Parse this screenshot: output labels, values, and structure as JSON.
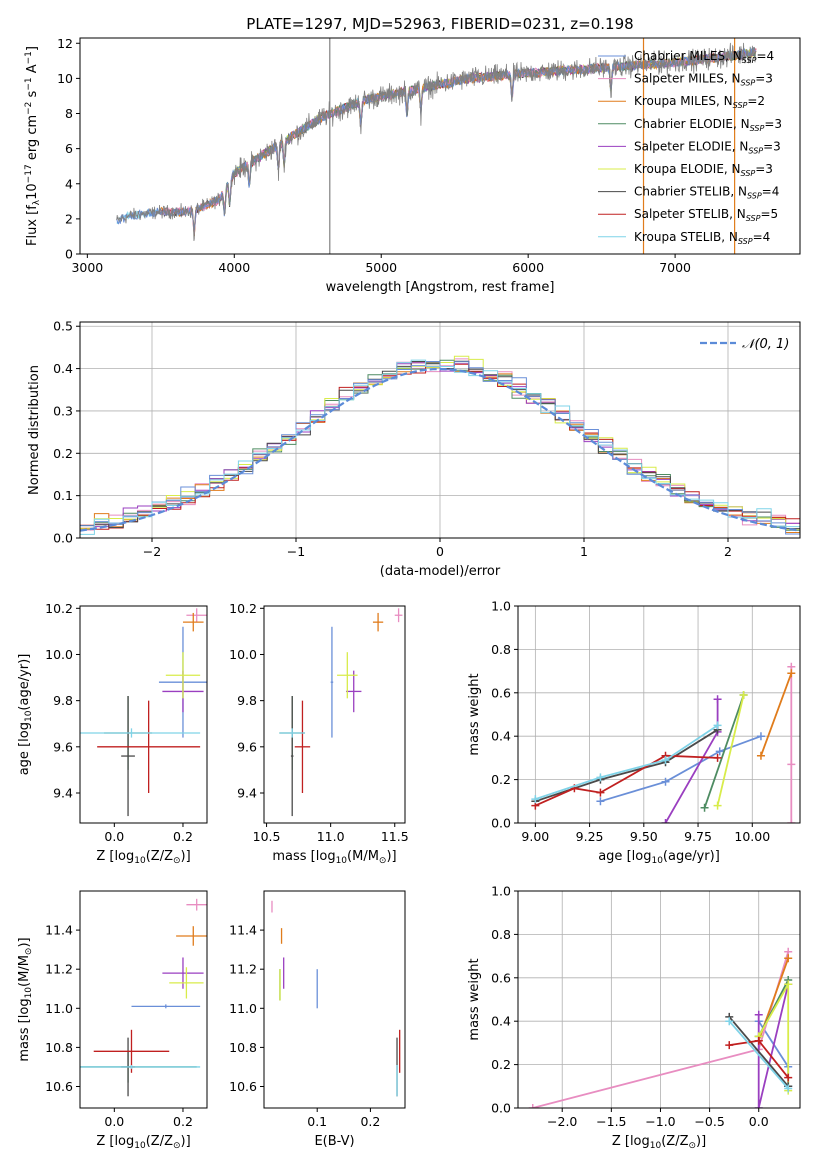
{
  "figure_title": "PLATE=1297, MJD=52963, FIBERID=0231, z=0.198",
  "colors": {
    "Chabrier MILES": "#6a8fd8",
    "Salpeter MILES": "#e88dc1",
    "Kroupa MILES": "#e07c1c",
    "Chabrier ELODIE": "#4e8c62",
    "Salpeter ELODIE": "#9a3fc0",
    "Kroupa ELODIE": "#d8ec4a",
    "Chabrier STELIB": "#4a4a4a",
    "Salpeter STELIB": "#c02020",
    "Kroupa STELIB": "#7fd3e8",
    "data": "#808080"
  },
  "chart_data": [
    {
      "id": "spectrum",
      "type": "line",
      "xlabel": "wavelength [Angstrom, rest frame]",
      "ylabel": "Flux [f_λ10^-17 erg cm^-2 s^-1 A^-1]",
      "xlim": [
        2950,
        7850
      ],
      "ylim": [
        0,
        12.3
      ],
      "xticks": [
        3000,
        4000,
        5000,
        6000,
        7000
      ],
      "yticks": [
        0,
        2,
        4,
        6,
        8,
        10,
        12
      ],
      "legend_position": "upper right",
      "legend": [
        {
          "name": "Chabrier MILES",
          "nssp": "4"
        },
        {
          "name": "Salpeter MILES",
          "nssp": "3"
        },
        {
          "name": "Kroupa MILES",
          "nssp": "2"
        },
        {
          "name": "Chabrier ELODIE",
          "nssp": "3"
        },
        {
          "name": "Salpeter ELODIE",
          "nssp": "3"
        },
        {
          "name": "Kroupa ELODIE",
          "nssp": "3"
        },
        {
          "name": "Chabrier STELIB",
          "nssp": "4"
        },
        {
          "name": "Salpeter STELIB",
          "nssp": "5"
        },
        {
          "name": "Kroupa STELIB",
          "nssp": "4"
        }
      ],
      "continuum": {
        "x": [
          3200,
          3300,
          3500,
          3700,
          3900,
          4000,
          4300,
          4600,
          4900,
          5200,
          5600,
          6000,
          6500,
          7000,
          7400,
          7600
        ],
        "y": [
          1.9,
          2.2,
          2.4,
          2.4,
          3.1,
          4.6,
          6.2,
          7.8,
          8.8,
          9.3,
          10.0,
          10.3,
          10.6,
          10.9,
          11.3,
          11.6
        ]
      }
    },
    {
      "id": "residuals",
      "type": "step",
      "xlabel": "(data-model)/error",
      "ylabel": "Normed distribution",
      "xlim": [
        -2.5,
        2.5
      ],
      "ylim": [
        0,
        0.51
      ],
      "xticks": [
        -2,
        -1,
        0,
        1,
        2
      ],
      "yticks": [
        0.0,
        0.1,
        0.2,
        0.3,
        0.4,
        0.5
      ],
      "legend_label": "N(0,1)",
      "bin_width": 0.1
    },
    {
      "id": "age_vs_Z",
      "type": "errorbar",
      "xlabel": "Z [log10(Z/Z⊙)]",
      "ylabel": "age  [log10(age/yr)]",
      "xlim": [
        -0.1,
        0.27
      ],
      "ylim": [
        9.27,
        10.21
      ],
      "xticks": [
        0.0,
        0.2
      ],
      "yticks": [
        9.4,
        9.6,
        9.8,
        10.0,
        10.2
      ],
      "points": [
        {
          "model": "Chabrier MILES",
          "x": 0.2,
          "xerr": 0.07,
          "y": 9.88,
          "yerr": 0.24
        },
        {
          "model": "Salpeter MILES",
          "x": 0.24,
          "xerr": 0.03,
          "y": 10.17,
          "yerr": 0.03
        },
        {
          "model": "Kroupa MILES",
          "x": 0.23,
          "xerr": 0.03,
          "y": 10.14,
          "yerr": 0.04
        },
        {
          "model": "Chabrier ELODIE",
          "x": 0.04,
          "xerr": 0.07,
          "y": 9.66,
          "yerr": 0.16
        },
        {
          "model": "Salpeter ELODIE",
          "x": 0.2,
          "xerr": 0.06,
          "y": 9.84,
          "yerr": 0.09
        },
        {
          "model": "Kroupa ELODIE",
          "x": 0.2,
          "xerr": 0.05,
          "y": 9.91,
          "yerr": 0.1
        },
        {
          "model": "Chabrier STELIB",
          "x": 0.04,
          "xerr": 0.02,
          "y": 9.56,
          "yerr": 0.26
        },
        {
          "model": "Salpeter STELIB",
          "x": 0.1,
          "xerr": 0.15,
          "y": 9.6,
          "yerr": 0.2
        },
        {
          "model": "Kroupa STELIB",
          "x": 0.05,
          "xerr": 0.2,
          "y": 9.66,
          "yerr": 0.02
        }
      ]
    },
    {
      "id": "age_vs_mass",
      "type": "errorbar",
      "xlabel": "mass [log10(M/M⊙)]",
      "ylabel": "",
      "xlim": [
        10.48,
        11.58
      ],
      "ylim": [
        9.27,
        10.21
      ],
      "xticks": [
        10.5,
        11.0,
        11.5
      ],
      "yticks": [
        9.4,
        9.6,
        9.8,
        10.0,
        10.2
      ],
      "points": [
        {
          "model": "Chabrier MILES",
          "x": 11.01,
          "xerr": 0.01,
          "y": 9.88,
          "yerr": 0.24
        },
        {
          "model": "Salpeter MILES",
          "x": 11.53,
          "xerr": 0.03,
          "y": 10.17,
          "yerr": 0.03
        },
        {
          "model": "Kroupa MILES",
          "x": 11.37,
          "xerr": 0.04,
          "y": 10.14,
          "yerr": 0.04
        },
        {
          "model": "Chabrier ELODIE",
          "x": 10.7,
          "xerr": 0.1,
          "y": 9.66,
          "yerr": 0.16
        },
        {
          "model": "Salpeter ELODIE",
          "x": 11.18,
          "xerr": 0.06,
          "y": 9.84,
          "yerr": 0.09
        },
        {
          "model": "Kroupa ELODIE",
          "x": 11.13,
          "xerr": 0.08,
          "y": 9.91,
          "yerr": 0.1
        },
        {
          "model": "Chabrier STELIB",
          "x": 10.7,
          "xerr": 0.01,
          "y": 9.56,
          "yerr": 0.26
        },
        {
          "model": "Salpeter STELIB",
          "x": 10.78,
          "xerr": 0.06,
          "y": 9.6,
          "yerr": 0.2
        },
        {
          "model": "Kroupa STELIB",
          "x": 10.7,
          "xerr": 0.1,
          "y": 9.66,
          "yerr": 0.02
        }
      ]
    },
    {
      "id": "weight_vs_age",
      "type": "line",
      "xlabel": "age  [log10(age/yr)]",
      "ylabel": "mass weight",
      "xlim": [
        8.92,
        10.22
      ],
      "ylim": [
        0,
        1.0
      ],
      "xticks": [
        9.0,
        9.25,
        9.5,
        9.75,
        10.0
      ],
      "yticks": [
        0.0,
        0.2,
        0.4,
        0.6,
        0.8,
        1.0
      ],
      "series": [
        {
          "model": "Chabrier MILES",
          "x": [
            9.3,
            9.6,
            9.85,
            10.04
          ],
          "y": [
            0.1,
            0.19,
            0.33,
            0.4
          ]
        },
        {
          "model": "Salpeter MILES",
          "x": [
            10.18,
            10.18,
            10.18
          ],
          "y": [
            0.0,
            0.27,
            0.72
          ]
        },
        {
          "model": "Kroupa MILES",
          "x": [
            10.04,
            10.18
          ],
          "y": [
            0.31,
            0.69
          ]
        },
        {
          "model": "Chabrier ELODIE",
          "x": [
            9.78,
            9.96
          ],
          "y": [
            0.07,
            0.59
          ]
        },
        {
          "model": "Salpeter ELODIE",
          "x": [
            9.6,
            9.84,
            9.84
          ],
          "y": [
            0.0,
            0.42,
            0.57
          ]
        },
        {
          "model": "Kroupa ELODIE",
          "x": [
            9.84,
            9.96
          ],
          "y": [
            0.08,
            0.59
          ]
        },
        {
          "model": "Chabrier STELIB",
          "x": [
            9.0,
            9.3,
            9.6,
            9.84
          ],
          "y": [
            0.1,
            0.2,
            0.28,
            0.43
          ]
        },
        {
          "model": "Salpeter STELIB",
          "x": [
            9.0,
            9.18,
            9.3,
            9.6,
            9.84
          ],
          "y": [
            0.08,
            0.16,
            0.14,
            0.31,
            0.3
          ]
        },
        {
          "model": "Kroupa STELIB",
          "x": [
            9.0,
            9.3,
            9.6,
            9.84
          ],
          "y": [
            0.11,
            0.21,
            0.29,
            0.45
          ]
        }
      ]
    },
    {
      "id": "mass_vs_Z",
      "type": "errorbar",
      "xlabel": "Z [log10(Z/Z⊙)]",
      "ylabel": "mass [log10(M/M⊙)]",
      "xlim": [
        -0.1,
        0.27
      ],
      "ylim": [
        10.49,
        11.6
      ],
      "xticks": [
        0.0,
        0.2
      ],
      "yticks": [
        10.6,
        10.8,
        11.0,
        11.2,
        11.4
      ],
      "points": [
        {
          "model": "Chabrier MILES",
          "x": 0.15,
          "xerr": 0.1,
          "y": 11.01,
          "yerr": 0.01
        },
        {
          "model": "Salpeter MILES",
          "x": 0.24,
          "xerr": 0.03,
          "y": 11.53,
          "yerr": 0.03
        },
        {
          "model": "Kroupa MILES",
          "x": 0.23,
          "xerr": 0.05,
          "y": 11.37,
          "yerr": 0.05
        },
        {
          "model": "Chabrier ELODIE",
          "x": 0.04,
          "xerr": 0.2,
          "y": 10.7,
          "yerr": 0.08
        },
        {
          "model": "Salpeter ELODIE",
          "x": 0.2,
          "xerr": 0.06,
          "y": 11.18,
          "yerr": 0.08
        },
        {
          "model": "Kroupa ELODIE",
          "x": 0.21,
          "xerr": 0.05,
          "y": 11.13,
          "yerr": 0.08
        },
        {
          "model": "Chabrier STELIB",
          "x": 0.04,
          "xerr": 0.02,
          "y": 10.7,
          "yerr": 0.15
        },
        {
          "model": "Salpeter STELIB",
          "x": 0.05,
          "xerr": 0.11,
          "y": 10.78,
          "yerr": 0.11
        },
        {
          "model": "Kroupa STELIB",
          "x": 0.05,
          "xerr": 0.2,
          "y": 10.7,
          "yerr": 0.01
        }
      ]
    },
    {
      "id": "mass_vs_ebv",
      "type": "errorbar",
      "xlabel": "E(B-V)",
      "ylabel": "",
      "xlim": [
        0.0,
        0.265
      ],
      "ylim": [
        10.49,
        11.6
      ],
      "xticks": [
        0.1,
        0.2
      ],
      "yticks": [
        10.6,
        10.8,
        11.0,
        11.2,
        11.4
      ],
      "points": [
        {
          "model": "Chabrier MILES",
          "x": 0.1,
          "xerr": 0.0,
          "y": 11.1,
          "yerr": 0.1
        },
        {
          "model": "Salpeter MILES",
          "x": 0.015,
          "xerr": 0.0,
          "y": 11.52,
          "yerr": 0.03
        },
        {
          "model": "Kroupa MILES",
          "x": 0.033,
          "xerr": 0.0,
          "y": 11.37,
          "yerr": 0.04
        },
        {
          "model": "Chabrier ELODIE",
          "x": 0.03,
          "xerr": 0.0,
          "y": 11.12,
          "yerr": 0.08
        },
        {
          "model": "Salpeter ELODIE",
          "x": 0.037,
          "xerr": 0.0,
          "y": 11.18,
          "yerr": 0.08
        },
        {
          "model": "Kroupa ELODIE",
          "x": 0.03,
          "xerr": 0.0,
          "y": 11.12,
          "yerr": 0.08
        },
        {
          "model": "Chabrier STELIB",
          "x": 0.25,
          "xerr": 0.0,
          "y": 10.7,
          "yerr": 0.15
        },
        {
          "model": "Salpeter STELIB",
          "x": 0.255,
          "xerr": 0.0,
          "y": 10.78,
          "yerr": 0.11
        },
        {
          "model": "Kroupa STELIB",
          "x": 0.25,
          "xerr": 0.0,
          "y": 10.63,
          "yerr": 0.08
        }
      ]
    },
    {
      "id": "weight_vs_Z",
      "type": "line",
      "xlabel": "Z [log10(Z/Z⊙)]",
      "ylabel": "mass weight",
      "xlim": [
        -2.45,
        0.42
      ],
      "ylim": [
        0,
        1.0
      ],
      "xticks": [
        -2.0,
        -1.5,
        -1.0,
        -0.5,
        0.0
      ],
      "yticks": [
        0.0,
        0.2,
        0.4,
        0.6,
        0.8,
        1.0
      ],
      "series": [
        {
          "model": "Chabrier MILES",
          "x": [
            0.3,
            0.3,
            0.0
          ],
          "y": [
            0.1,
            0.19,
            0.4
          ]
        },
        {
          "model": "Salpeter MILES",
          "x": [
            -2.3,
            0.0,
            0.3
          ],
          "y": [
            0.0,
            0.27,
            0.72
          ]
        },
        {
          "model": "Kroupa MILES",
          "x": [
            0.0,
            0.3
          ],
          "y": [
            0.31,
            0.69
          ]
        },
        {
          "model": "Chabrier ELODIE",
          "x": [
            0.0,
            0.3
          ],
          "y": [
            0.33,
            0.59
          ]
        },
        {
          "model": "Salpeter ELODIE",
          "x": [
            0.0,
            0.0,
            0.3
          ],
          "y": [
            0.43,
            0.0,
            0.57
          ]
        },
        {
          "model": "Kroupa ELODIE",
          "x": [
            0.0,
            0.3,
            0.3
          ],
          "y": [
            0.33,
            0.57,
            0.08
          ]
        },
        {
          "model": "Chabrier STELIB",
          "x": [
            -0.3,
            0.3
          ],
          "y": [
            0.42,
            0.1
          ]
        },
        {
          "model": "Salpeter STELIB",
          "x": [
            -0.3,
            0.0,
            0.3
          ],
          "y": [
            0.29,
            0.31,
            0.14
          ]
        },
        {
          "model": "Kroupa STELIB",
          "x": [
            -0.3,
            0.3
          ],
          "y": [
            0.4,
            0.09
          ]
        }
      ]
    }
  ]
}
